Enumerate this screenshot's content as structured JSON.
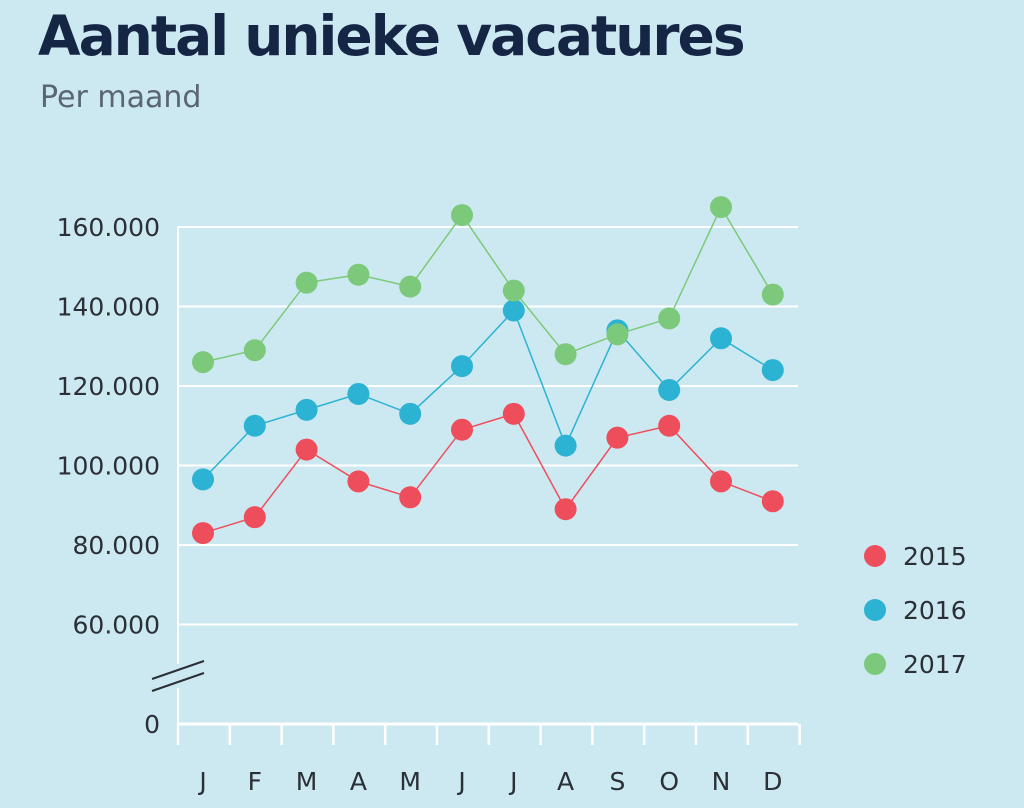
{
  "header": {
    "title": "Aantal unieke vacatures",
    "subtitle": "Per maand"
  },
  "chart_data": {
    "type": "line",
    "title": "Aantal unieke vacatures",
    "subtitle": "Per maand",
    "xlabel": "",
    "ylabel": "",
    "categories": [
      "J",
      "F",
      "M",
      "A",
      "M",
      "J",
      "J",
      "A",
      "S",
      "O",
      "N",
      "D"
    ],
    "yticks": [
      0,
      60000,
      80000,
      100000,
      120000,
      140000,
      160000
    ],
    "ytick_labels": [
      "0",
      "60.000",
      "80.000",
      "100.000",
      "120.000",
      "140.000",
      "160.000"
    ],
    "ylim": [
      0,
      160000
    ],
    "axis_break": "between 0 and 60.000",
    "grid": "horizontal",
    "legend_position": "right",
    "series": [
      {
        "name": "2015",
        "color": "#ee4e5c",
        "values": [
          83000,
          87000,
          104000,
          96000,
          92000,
          109000,
          113000,
          89000,
          107000,
          110000,
          96000,
          91000
        ]
      },
      {
        "name": "2016",
        "color": "#2cb2d3",
        "values": [
          96500,
          110000,
          114000,
          118000,
          113000,
          125000,
          139000,
          105000,
          134000,
          119000,
          132000,
          124000
        ]
      },
      {
        "name": "2017",
        "color": "#7cc97b",
        "values": [
          126000,
          129000,
          146000,
          148000,
          145000,
          163000,
          144000,
          128000,
          133000,
          137000,
          165000,
          143000
        ]
      }
    ]
  }
}
